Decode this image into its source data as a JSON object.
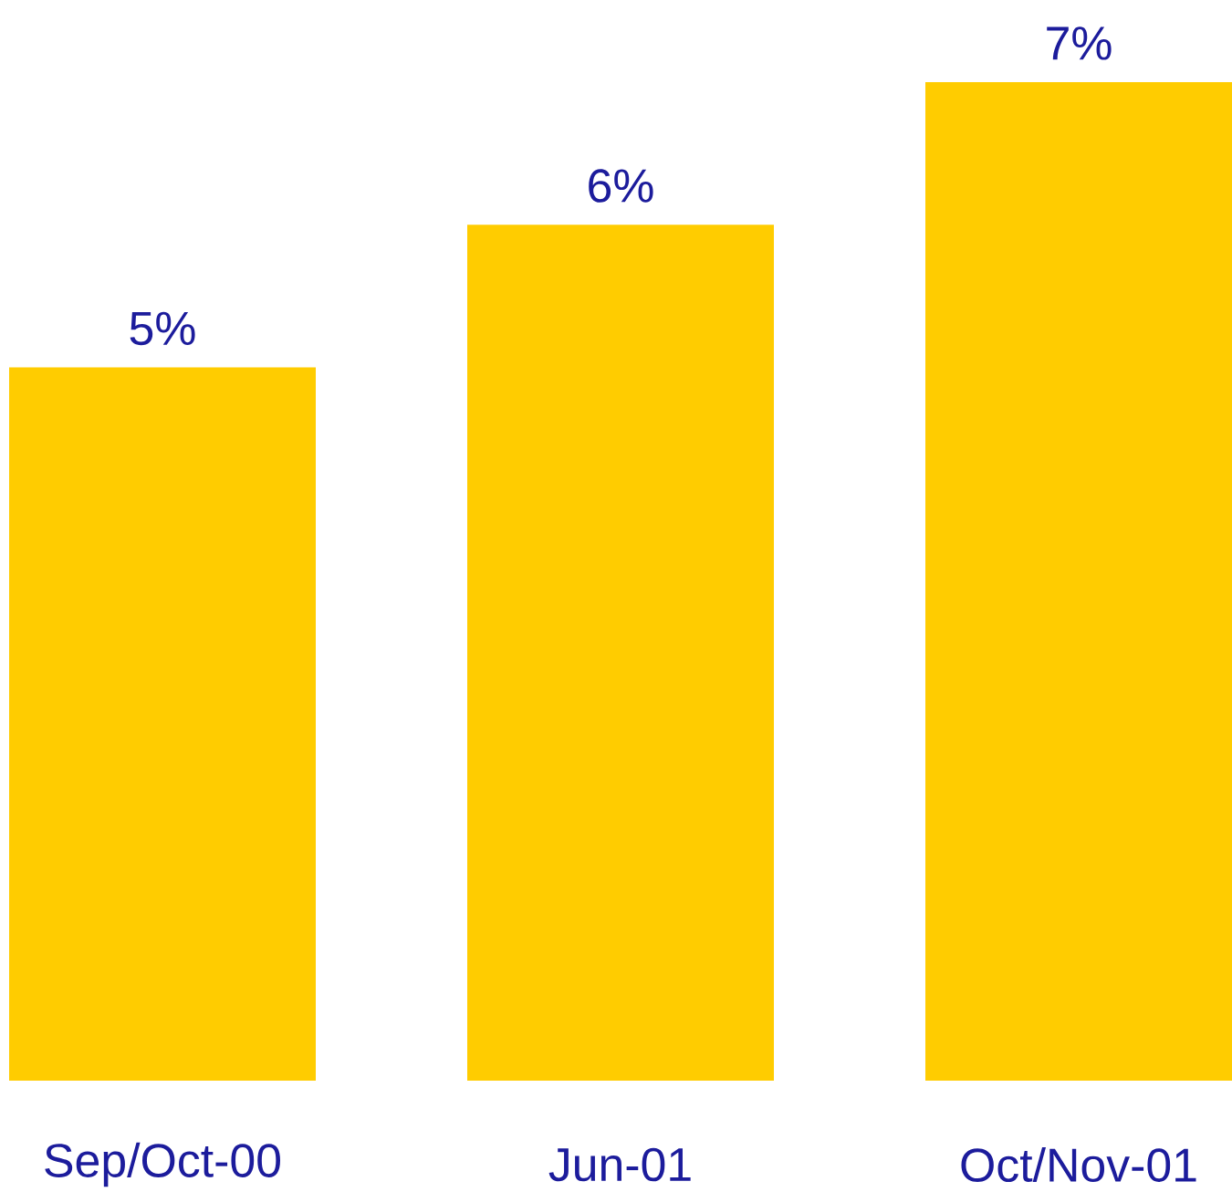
{
  "chart_data": {
    "type": "bar",
    "categories": [
      "Sep/Oct-00",
      "Jun-01",
      "Oct/Nov-01"
    ],
    "values": [
      5,
      6,
      7
    ],
    "value_labels": [
      "5%",
      "6%",
      "7%"
    ],
    "color": "#ffcc00"
  }
}
